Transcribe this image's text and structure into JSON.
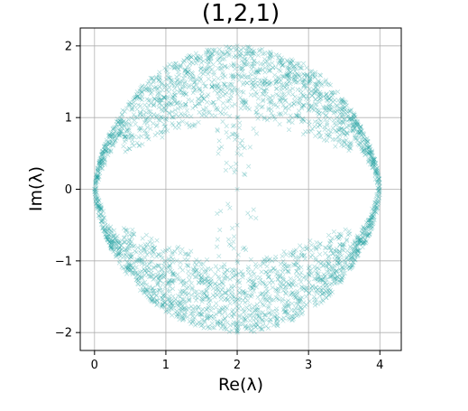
{
  "chart_data": {
    "type": "scatter",
    "title": "(1,2,1)",
    "xlabel": "Re(λ)",
    "ylabel": "Im(λ)",
    "xlim": [
      -0.2,
      4.3
    ],
    "ylim": [
      -2.25,
      2.25
    ],
    "xticks": [
      0,
      1,
      2,
      3,
      4
    ],
    "yticks": [
      -2,
      -1,
      0,
      1,
      2
    ],
    "xtick_labels": [
      "0",
      "1",
      "2",
      "3",
      "4"
    ],
    "ytick_labels": [
      "−2",
      "−1",
      "0",
      "1",
      "2"
    ],
    "grid": true,
    "legend": "none",
    "marker": "x",
    "color": "#1a9e9e",
    "series": [
      {
        "description": "dense eigenvalue cloud, symmetric about Im=0 and Re=2",
        "points": [
          [
            0,
            0
          ],
          [
            4,
            0
          ],
          [
            2,
            0
          ],
          [
            2,
            2
          ],
          [
            2,
            -2
          ],
          [
            0.05,
            0.25
          ],
          [
            0.05,
            -0.25
          ],
          [
            3.95,
            0.25
          ],
          [
            3.95,
            -0.25
          ],
          [
            0.15,
            0.5
          ],
          [
            0.15,
            -0.5
          ],
          [
            3.85,
            0.5
          ],
          [
            3.85,
            -0.5
          ],
          [
            0.35,
            0.75
          ],
          [
            0.35,
            -0.75
          ],
          [
            3.65,
            0.75
          ],
          [
            3.65,
            -0.75
          ],
          [
            0.6,
            1.0
          ],
          [
            0.6,
            -1.0
          ],
          [
            3.4,
            1.0
          ],
          [
            3.4,
            -1.0
          ],
          [
            0.9,
            1.25
          ],
          [
            0.9,
            -1.25
          ],
          [
            3.1,
            1.25
          ],
          [
            3.1,
            -1.25
          ],
          [
            1.2,
            1.5
          ],
          [
            1.2,
            -1.5
          ],
          [
            2.8,
            1.5
          ],
          [
            2.8,
            -1.5
          ],
          [
            1.5,
            1.7
          ],
          [
            1.5,
            -1.7
          ],
          [
            2.5,
            1.7
          ],
          [
            2.5,
            -1.7
          ],
          [
            1.8,
            1.9
          ],
          [
            1.8,
            -1.9
          ],
          [
            2.2,
            1.9
          ],
          [
            2.2,
            -1.9
          ],
          [
            2,
            1.0
          ],
          [
            2,
            -1.0
          ],
          [
            2,
            0.5
          ],
          [
            2,
            -0.5
          ],
          [
            1.5,
            1.3
          ],
          [
            1.5,
            -1.3
          ],
          [
            2.5,
            1.3
          ],
          [
            2.5,
            -1.3
          ],
          [
            1.0,
            1.1
          ],
          [
            1.0,
            -1.1
          ],
          [
            3.0,
            1.1
          ],
          [
            3.0,
            -1.1
          ]
        ]
      }
    ]
  }
}
